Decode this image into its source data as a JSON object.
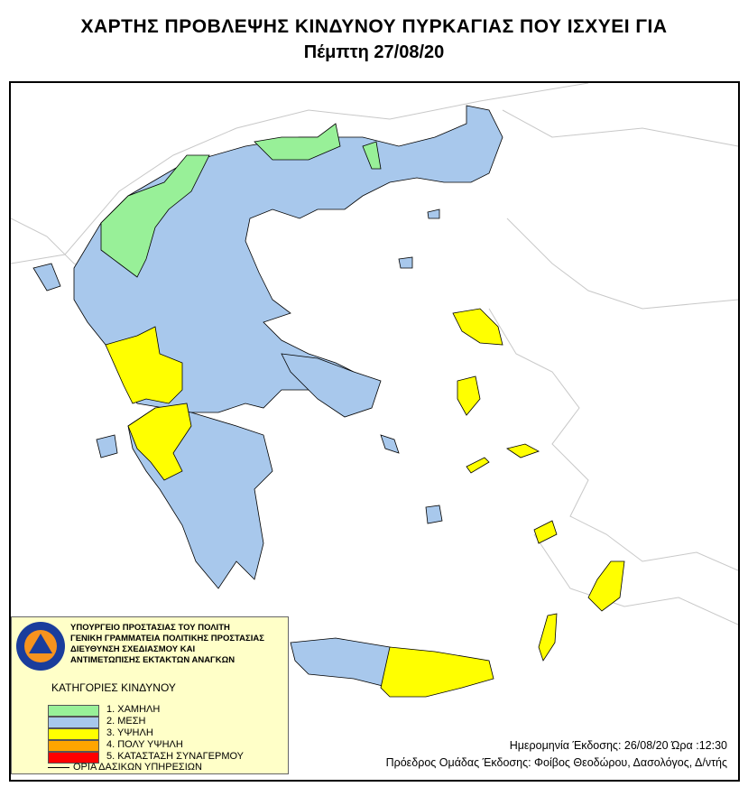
{
  "title_line1": "ΧΑΡΤΗΣ ΠΡΟΒΛΕΨΗΣ ΚΙΝΔΥΝΟΥ ΠΥΡΚΑΓΙΑΣ ΠΟΥ ΙΣΧΥΕΙ ΓΙΑ",
  "title_line2": "Πέμπτη 27/08/20",
  "legend": {
    "logo_text": "ΠΟΛΙΤΙΚΗ ΠΡΟΣΤΑΣΙΑ · ΕΛΛΑΔΑ",
    "org_lines": [
      "ΥΠΟΥΡΓΕΙΟ ΠΡΟΣΤΑΣΙΑΣ ΤΟΥ ΠΟΛΙΤΗ",
      "ΓΕΝΙΚΗ ΓΡΑΜΜΑΤΕΙΑ ΠΟΛΙΤΙΚΗΣ ΠΡΟΣΤΑΣΙΑΣ",
      "ΔΙΕΥΘΥΝΣΗ ΣΧΕΔΙΑΣΜΟΥ ΚΑΙ",
      "ΑΝΤΙΜΕΤΩΠΙΣΗΣ ΕΚΤΑΚΤΩΝ ΑΝΑΓΚΩΝ"
    ],
    "categories_title": "ΚΑΤΗΓΟΡΙΕΣ ΚΙΝΔΥΝΟΥ",
    "categories": [
      {
        "label": "1. ΧΑΜΗΛΗ",
        "color": "#98f098"
      },
      {
        "label": "2. ΜΕΣΗ",
        "color": "#a8c8ec"
      },
      {
        "label": "3. ΥΨΗΛΗ",
        "color": "#ffff00"
      },
      {
        "label": "4. ΠΟΛΥ ΥΨΗΛΗ",
        "color": "#ffa500"
      },
      {
        "label": "5. ΚΑΤΑΣΤΑΣΗ ΣΥΝΑΓΕΡΜΟΥ",
        "color": "#ff0000"
      }
    ],
    "boundary_label": "ΟΡΙΑ ΔΑΣΙΚΩΝ ΥΠΗΡΕΣΙΩΝ"
  },
  "issue_info": "Ημερομηνία Έκδοσης: 26/08/20  Ώρα :12:30",
  "issuer_info": "Πρόεδρος Ομάδας Έκδοσης: Φοίβος Θεοδώρου,  Δασολόγος, Δ/ντής"
}
